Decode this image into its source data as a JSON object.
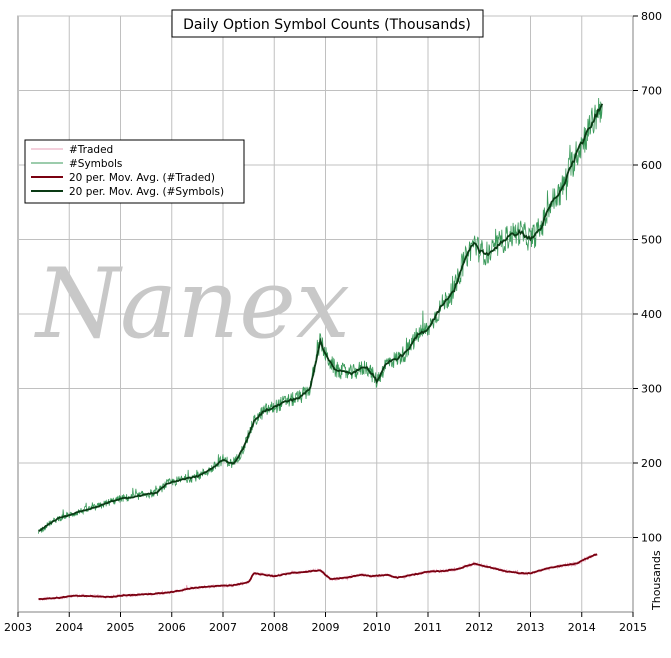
{
  "chart_data": {
    "type": "line",
    "title": "Daily Option Symbol Counts (Thousands)",
    "ylabel": "Thousands",
    "watermark": "Nanex",
    "xlim": [
      2003,
      2015
    ],
    "ylim": [
      0,
      800
    ],
    "x_ticks": [
      "2003",
      "2004",
      "2005",
      "2006",
      "2007",
      "2008",
      "2009",
      "2010",
      "2011",
      "2012",
      "2013",
      "2014",
      "2015"
    ],
    "y_ticks": [
      "100",
      "200",
      "300",
      "400",
      "500",
      "600",
      "700",
      "800"
    ],
    "grid": true,
    "legend_position": "left",
    "series": [
      {
        "name": "#Traded",
        "color": "#e8a0b8",
        "style": "noisy",
        "x": [
          2003.4,
          2003.6,
          2003.8,
          2004.0,
          2004.2,
          2004.5,
          2004.8,
          2005.0,
          2005.3,
          2005.6,
          2005.9,
          2006.1,
          2006.4,
          2006.7,
          2006.9,
          2007.2,
          2007.5,
          2007.6,
          2007.8,
          2008.0,
          2008.3,
          2008.6,
          2008.9,
          2009.1,
          2009.4,
          2009.7,
          2009.9,
          2010.2,
          2010.4,
          2010.7,
          2011.0,
          2011.3,
          2011.6,
          2011.9,
          2012.2,
          2012.5,
          2012.8,
          2013.0,
          2013.3,
          2013.6,
          2013.9,
          2014.1,
          2014.3
        ],
        "values": [
          17,
          18,
          19,
          21,
          22,
          21,
          20,
          22,
          23,
          24,
          26,
          28,
          32,
          34,
          35,
          36,
          40,
          52,
          50,
          48,
          52,
          54,
          56,
          44,
          46,
          50,
          48,
          50,
          46,
          50,
          54,
          55,
          58,
          65,
          60,
          55,
          52,
          52,
          58,
          62,
          65,
          72,
          78
        ]
      },
      {
        "name": "#Symbols",
        "color": "#3a9a5a",
        "style": "noisy",
        "x": [
          2003.4,
          2003.6,
          2003.8,
          2004.0,
          2004.2,
          2004.5,
          2004.8,
          2005.0,
          2005.3,
          2005.5,
          2005.7,
          2005.9,
          2006.2,
          2006.5,
          2006.8,
          2007.0,
          2007.2,
          2007.4,
          2007.6,
          2007.8,
          2008.0,
          2008.2,
          2008.5,
          2008.7,
          2008.9,
          2009.0,
          2009.2,
          2009.5,
          2009.8,
          2010.0,
          2010.2,
          2010.4,
          2010.6,
          2010.8,
          2011.0,
          2011.3,
          2011.5,
          2011.7,
          2011.9,
          2012.0,
          2012.2,
          2012.4,
          2012.6,
          2012.8,
          2013.0,
          2013.2,
          2013.4,
          2013.6,
          2013.8,
          2014.0,
          2014.2,
          2014.4
        ],
        "values": [
          108,
          118,
          126,
          130,
          135,
          140,
          148,
          152,
          155,
          158,
          160,
          172,
          178,
          182,
          193,
          205,
          198,
          220,
          255,
          270,
          275,
          282,
          288,
          300,
          365,
          345,
          325,
          320,
          330,
          310,
          335,
          340,
          350,
          372,
          380,
          415,
          430,
          470,
          497,
          485,
          480,
          495,
          505,
          510,
          500,
          515,
          548,
          565,
          600,
          630,
          655,
          685
        ]
      },
      {
        "name": "20 per. Mov. Avg. (#Traded)",
        "color": "#7a0010",
        "style": "smooth",
        "x": [
          2003.4,
          2003.6,
          2003.8,
          2004.0,
          2004.2,
          2004.5,
          2004.8,
          2005.0,
          2005.3,
          2005.6,
          2005.9,
          2006.1,
          2006.4,
          2006.7,
          2006.9,
          2007.2,
          2007.5,
          2007.6,
          2007.8,
          2008.0,
          2008.3,
          2008.6,
          2008.9,
          2009.1,
          2009.4,
          2009.7,
          2009.9,
          2010.2,
          2010.4,
          2010.7,
          2011.0,
          2011.3,
          2011.6,
          2011.9,
          2012.2,
          2012.5,
          2012.8,
          2013.0,
          2013.3,
          2013.6,
          2013.9,
          2014.1,
          2014.3
        ],
        "values": [
          17,
          18,
          19,
          21,
          22,
          21,
          20,
          22,
          23,
          24,
          26,
          28,
          32,
          34,
          35,
          36,
          40,
          52,
          50,
          48,
          52,
          54,
          56,
          44,
          46,
          50,
          48,
          50,
          46,
          50,
          54,
          55,
          58,
          65,
          60,
          55,
          52,
          52,
          58,
          62,
          65,
          72,
          78
        ]
      },
      {
        "name": "20 per. Mov. Avg. (#Symbols)",
        "color": "#0a3a14",
        "style": "smooth",
        "x": [
          2003.4,
          2003.6,
          2003.8,
          2004.0,
          2004.2,
          2004.5,
          2004.8,
          2005.0,
          2005.3,
          2005.5,
          2005.7,
          2005.9,
          2006.2,
          2006.5,
          2006.8,
          2007.0,
          2007.2,
          2007.4,
          2007.6,
          2007.8,
          2008.0,
          2008.2,
          2008.5,
          2008.7,
          2008.9,
          2009.0,
          2009.2,
          2009.5,
          2009.8,
          2010.0,
          2010.2,
          2010.4,
          2010.6,
          2010.8,
          2011.0,
          2011.3,
          2011.5,
          2011.7,
          2011.9,
          2012.0,
          2012.2,
          2012.4,
          2012.6,
          2012.8,
          2013.0,
          2013.2,
          2013.4,
          2013.6,
          2013.8,
          2014.0,
          2014.2,
          2014.4
        ],
        "values": [
          108,
          118,
          126,
          130,
          135,
          140,
          148,
          152,
          155,
          158,
          160,
          172,
          178,
          182,
          193,
          205,
          198,
          220,
          255,
          270,
          275,
          282,
          288,
          300,
          365,
          345,
          325,
          320,
          330,
          310,
          335,
          340,
          350,
          372,
          380,
          415,
          430,
          470,
          497,
          485,
          480,
          495,
          505,
          510,
          500,
          515,
          548,
          565,
          600,
          630,
          655,
          685
        ]
      }
    ]
  }
}
